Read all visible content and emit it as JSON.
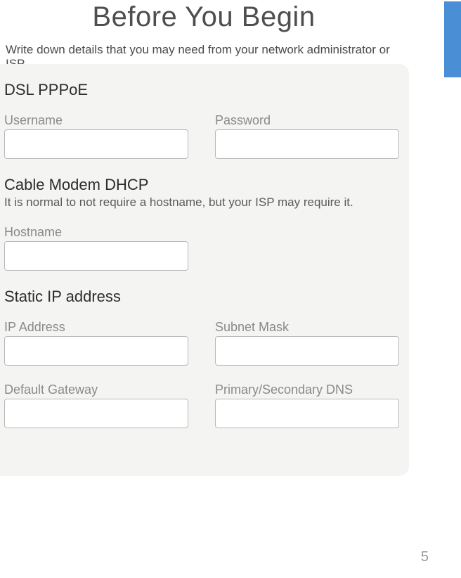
{
  "title": "Before You Begin",
  "intro": "Write down details that you may need from your network administrator or ISP.",
  "sections": {
    "pppoe": {
      "heading": "DSL PPPoE",
      "username_label": "Username",
      "password_label": "Password"
    },
    "dhcp": {
      "heading": "Cable Modem DHCP",
      "sub": "It is normal to not require a hostname, but your ISP may require it.",
      "hostname_label": "Hostname"
    },
    "static": {
      "heading": "Static IP address",
      "ip_label": "IP Address",
      "subnet_label": "Subnet Mask",
      "gateway_label": "Default Gateway",
      "dns_label": "Primary/Secondary DNS"
    }
  },
  "page_number": "5",
  "colors": {
    "side_tab": "#4a8fd6",
    "panel_bg": "#f4f4f3",
    "box_border": "#b8b8b8",
    "label_text": "#8a8a8a",
    "heading_text": "#2d2d2d"
  }
}
